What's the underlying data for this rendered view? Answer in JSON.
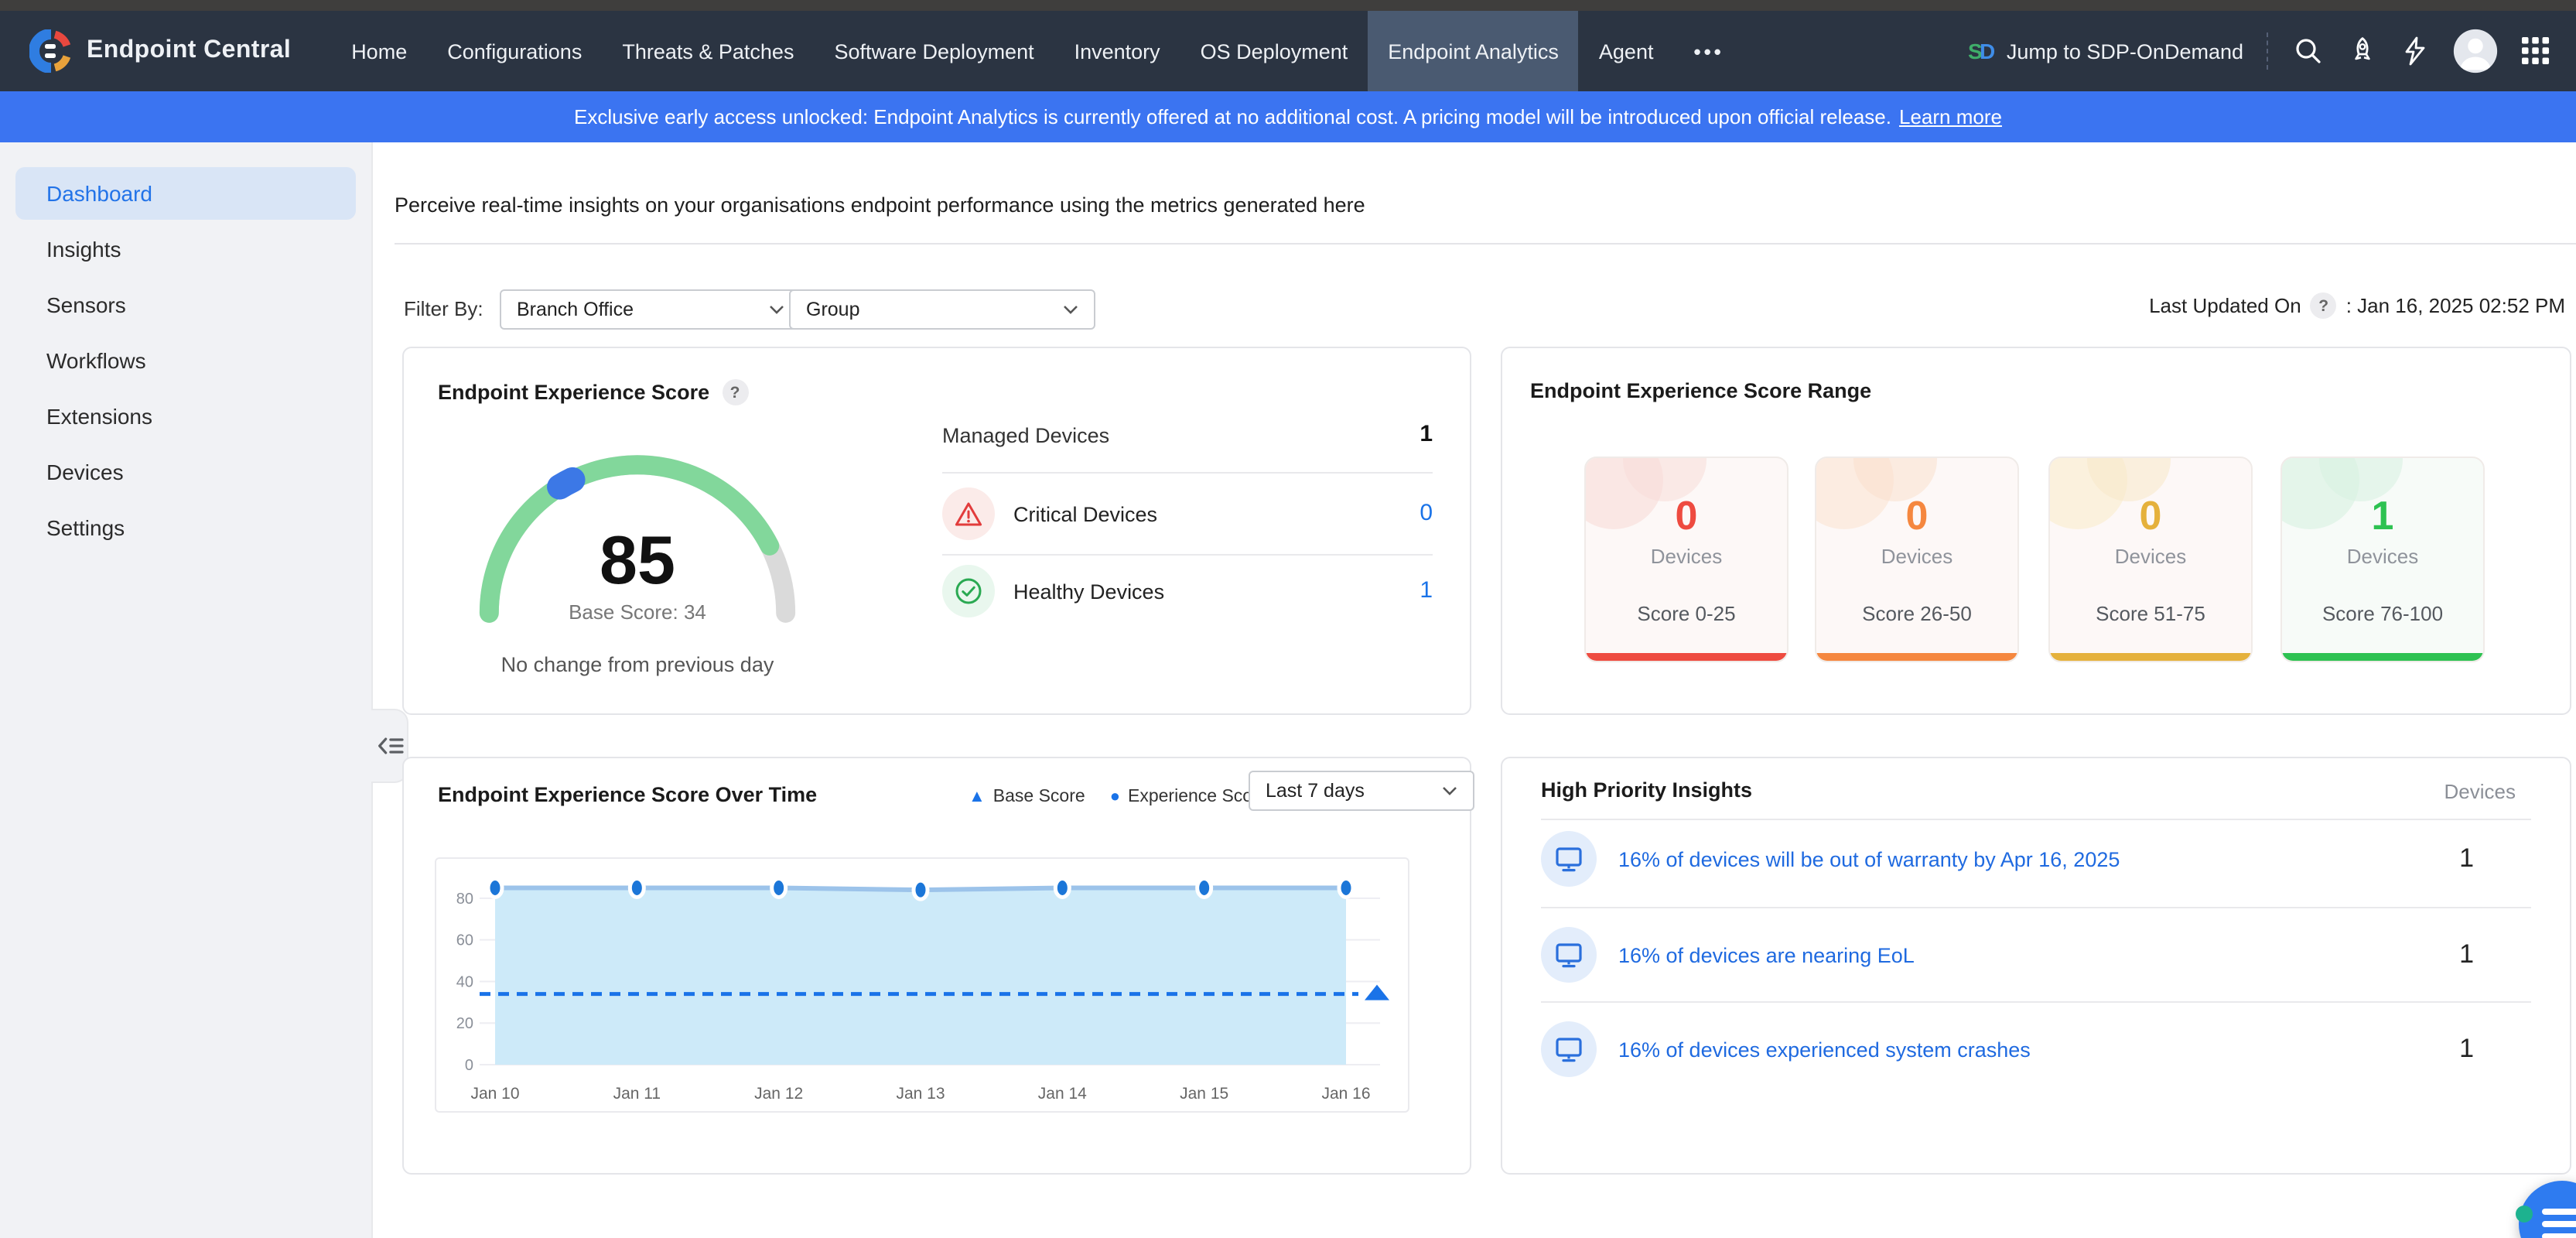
{
  "colors": {
    "nav_bg": "#2b3442",
    "nav_active_bg": "#4a5a71",
    "banner_bg": "#3b74f1",
    "accent_blue": "#1a73e8",
    "gauge_green": "#82d79b",
    "gauge_track": "#dadada",
    "gauge_marker_blue": "#3c78e6",
    "critical_red": "#e23c3c",
    "healthy_green": "#2aa952"
  },
  "nav": {
    "brand": "Endpoint Central",
    "items": [
      "Home",
      "Configurations",
      "Threats & Patches",
      "Software Deployment",
      "Inventory",
      "OS Deployment",
      "Endpoint Analytics",
      "Agent"
    ],
    "active": "Endpoint Analytics",
    "more_label": "•••",
    "jump_label": "Jump to SDP-OnDemand"
  },
  "banner": {
    "message": "Exclusive early access unlocked: Endpoint Analytics is currently offered at no additional cost. A pricing model will be introduced upon official release.",
    "link_label": "Learn more"
  },
  "sidebar": {
    "items": [
      "Dashboard",
      "Insights",
      "Sensors",
      "Workflows",
      "Extensions",
      "Devices",
      "Settings"
    ],
    "active": "Dashboard"
  },
  "page": {
    "description": "Perceive real-time insights on your organisations endpoint performance using the metrics generated here"
  },
  "filter_bar": {
    "label": "Filter By:",
    "office_filter": "Branch Office",
    "group_filter": "Group",
    "last_updated_label": "Last Updated On",
    "last_updated_value": ": Jan 16, 2025 02:52 PM"
  },
  "icons": {
    "help": "?",
    "legend_triangle": "▲",
    "legend_circle": "●"
  },
  "score_card": {
    "title": "Endpoint Experience Score",
    "score": 85,
    "base_score": 34,
    "base_score_label": "Base Score: 34",
    "change_text": "No change from previous day",
    "managed_label": "Managed Devices",
    "managed_value": "1",
    "critical_label": "Critical Devices",
    "critical_value": "0",
    "healthy_label": "Healthy Devices",
    "healthy_value": "1"
  },
  "range_card": {
    "title": "Endpoint Experience Score Range",
    "items": [
      {
        "count": "0",
        "label": "Devices",
        "range": "Score 0-25",
        "color": "#ee4b40"
      },
      {
        "count": "0",
        "label": "Devices",
        "range": "Score 26-50",
        "color": "#f5873f"
      },
      {
        "count": "0",
        "label": "Devices",
        "range": "Score 51-75",
        "color": "#e5b13c"
      },
      {
        "count": "1",
        "label": "Devices",
        "range": "Score 76-100",
        "color": "#2ec252"
      }
    ]
  },
  "chart_card": {
    "title": "Endpoint Experience Score Over Time",
    "legend": [
      "Base Score",
      "Experience Score"
    ],
    "time_range": "Last 7 days"
  },
  "chart_data": {
    "type": "area",
    "title": "Endpoint Experience Score Over Time",
    "x": [
      "Jan 10",
      "Jan 11",
      "Jan 12",
      "Jan 13",
      "Jan 14",
      "Jan 15",
      "Jan 16"
    ],
    "series": [
      {
        "name": "Experience Score",
        "style": "area-line",
        "marker": "circle",
        "color": "#1b76d8",
        "line_color": "#9cc3ea",
        "fill_color": "#cdeaf9",
        "values": [
          85,
          85,
          85,
          84,
          85,
          85,
          85
        ]
      },
      {
        "name": "Base Score",
        "style": "dashed-line",
        "marker": "triangle",
        "color": "#1a73e8",
        "values": [
          34,
          34,
          34,
          34,
          34,
          34,
          34
        ]
      }
    ],
    "ylim": [
      0,
      90
    ],
    "yticks": [
      0,
      20,
      40,
      60,
      80
    ],
    "grid": true,
    "legend_position": "top-right"
  },
  "insights_card": {
    "title": "High Priority Insights",
    "devices_header": "Devices",
    "rows": [
      {
        "text": "16% of devices will be out of warranty by Apr 16, 2025",
        "devices": "1"
      },
      {
        "text": "16% of devices are nearing EoL",
        "devices": "1"
      },
      {
        "text": "16% of devices experienced system crashes",
        "devices": "1"
      }
    ]
  }
}
